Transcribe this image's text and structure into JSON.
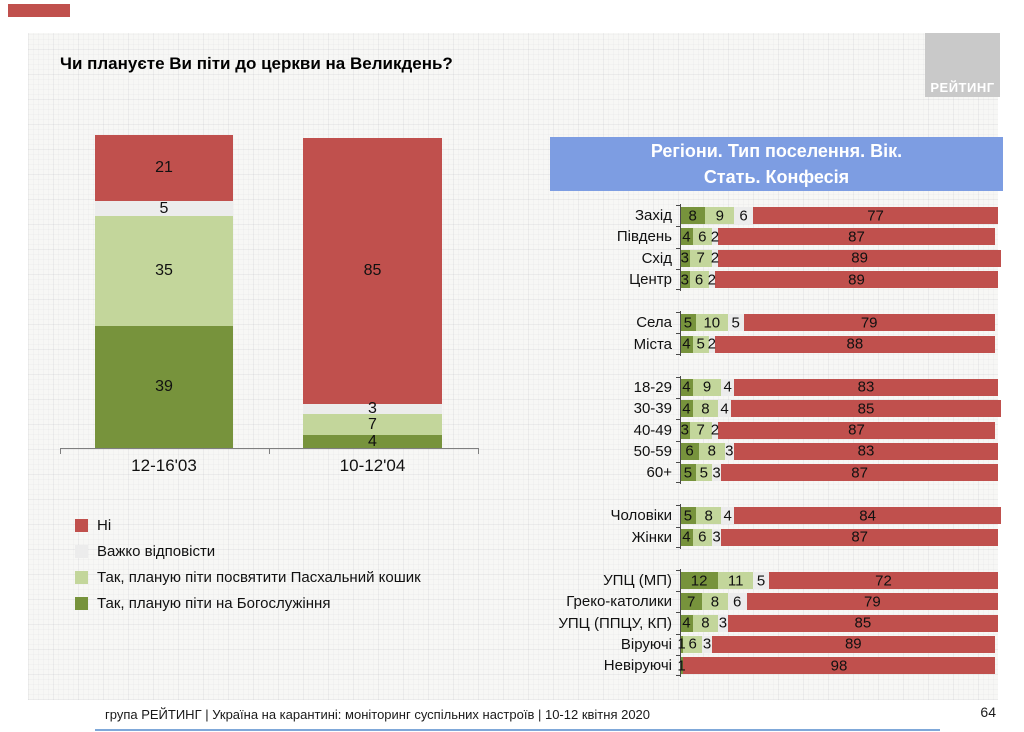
{
  "title": "Чи плануєте Ви піти до церкви на Великдень?",
  "logo": {
    "label": "РЕЙТИНГ"
  },
  "footer": {
    "text": "група РЕЙТИНГ | Україна на карантині: моніторинг суспільних настроїв | 10-12 квітня 2020",
    "page_number": "64"
  },
  "colors": {
    "no": "#C0504D",
    "hard": "#ECECEC",
    "basket": "#C3D69B",
    "service": "#77933C",
    "header_bg": "#7D9DE2",
    "footer_line": "#7FA8D9",
    "accent": "#C0504D",
    "logo_bg": "#C9C9C9"
  },
  "legend": [
    {
      "key": "no",
      "label": "Ні"
    },
    {
      "key": "hard",
      "label": "Важко відповісти"
    },
    {
      "key": "basket",
      "label": "Так, планую піти посвятити Пасхальний кошик"
    },
    {
      "key": "service",
      "label": "Так, планую піти на Богослужіння"
    }
  ],
  "right_panel": {
    "header_line1": "Регіони. Тип поселення. Вік.",
    "header_line2": "Стать. Конфесія"
  },
  "chart_data": [
    {
      "type": "bar",
      "subtype": "stacked-vertical",
      "title": "Чи плануєте Ви піти до церкви на Великдень?",
      "unit": "percent",
      "ylim": [
        0,
        100
      ],
      "categories": [
        "12-16'03",
        "10-12'04"
      ],
      "series": [
        {
          "name": "Так, планую піти на Богослужіння",
          "key": "service",
          "values": [
            39,
            4
          ]
        },
        {
          "name": "Так, планую піти посвятити Пасхальний кошик",
          "key": "basket",
          "values": [
            35,
            7
          ]
        },
        {
          "name": "Важко відповісти",
          "key": "hard",
          "values": [
            5,
            3
          ]
        },
        {
          "name": "Ні",
          "key": "no",
          "values": [
            21,
            85
          ]
        }
      ]
    },
    {
      "type": "bar",
      "subtype": "stacked-horizontal",
      "title": "Регіони. Тип поселення. Вік. Стать. Конфесія",
      "unit": "percent",
      "xlim": [
        0,
        100
      ],
      "segment_order": [
        "service",
        "basket",
        "hard",
        "no"
      ],
      "groups": [
        {
          "rows": [
            {
              "label": "Захід",
              "values": [
                8,
                9,
                6,
                77
              ]
            },
            {
              "label": "Південь",
              "values": [
                4,
                6,
                2,
                87
              ]
            },
            {
              "label": "Схід",
              "values": [
                3,
                7,
                2,
                89
              ]
            },
            {
              "label": "Центр",
              "values": [
                3,
                6,
                2,
                89
              ]
            }
          ]
        },
        {
          "rows": [
            {
              "label": "Села",
              "values": [
                5,
                10,
                5,
                79
              ]
            },
            {
              "label": "Міста",
              "values": [
                4,
                5,
                2,
                88
              ]
            }
          ]
        },
        {
          "rows": [
            {
              "label": "18-29",
              "values": [
                4,
                9,
                4,
                83
              ]
            },
            {
              "label": "30-39",
              "values": [
                4,
                8,
                4,
                85
              ]
            },
            {
              "label": "40-49",
              "values": [
                3,
                7,
                2,
                87
              ]
            },
            {
              "label": "50-59",
              "values": [
                6,
                8,
                3,
                83
              ]
            },
            {
              "label": "60+",
              "values": [
                5,
                5,
                3,
                87
              ]
            }
          ]
        },
        {
          "rows": [
            {
              "label": "Чоловіки",
              "values": [
                5,
                8,
                4,
                84
              ]
            },
            {
              "label": "Жінки",
              "values": [
                4,
                6,
                3,
                87
              ]
            }
          ]
        },
        {
          "rows": [
            {
              "label": "УПЦ (МП)",
              "values": [
                12,
                11,
                5,
                72
              ]
            },
            {
              "label": "Греко-католики",
              "values": [
                7,
                8,
                6,
                79
              ]
            },
            {
              "label": "УПЦ (ППЦУ, КП)",
              "values": [
                4,
                8,
                3,
                85
              ]
            },
            {
              "label": "Віруючі",
              "values": [
                1,
                6,
                3,
                89
              ]
            },
            {
              "label": "Невіруючі",
              "values": [
                1,
                0,
                0,
                98
              ]
            }
          ]
        }
      ]
    }
  ]
}
